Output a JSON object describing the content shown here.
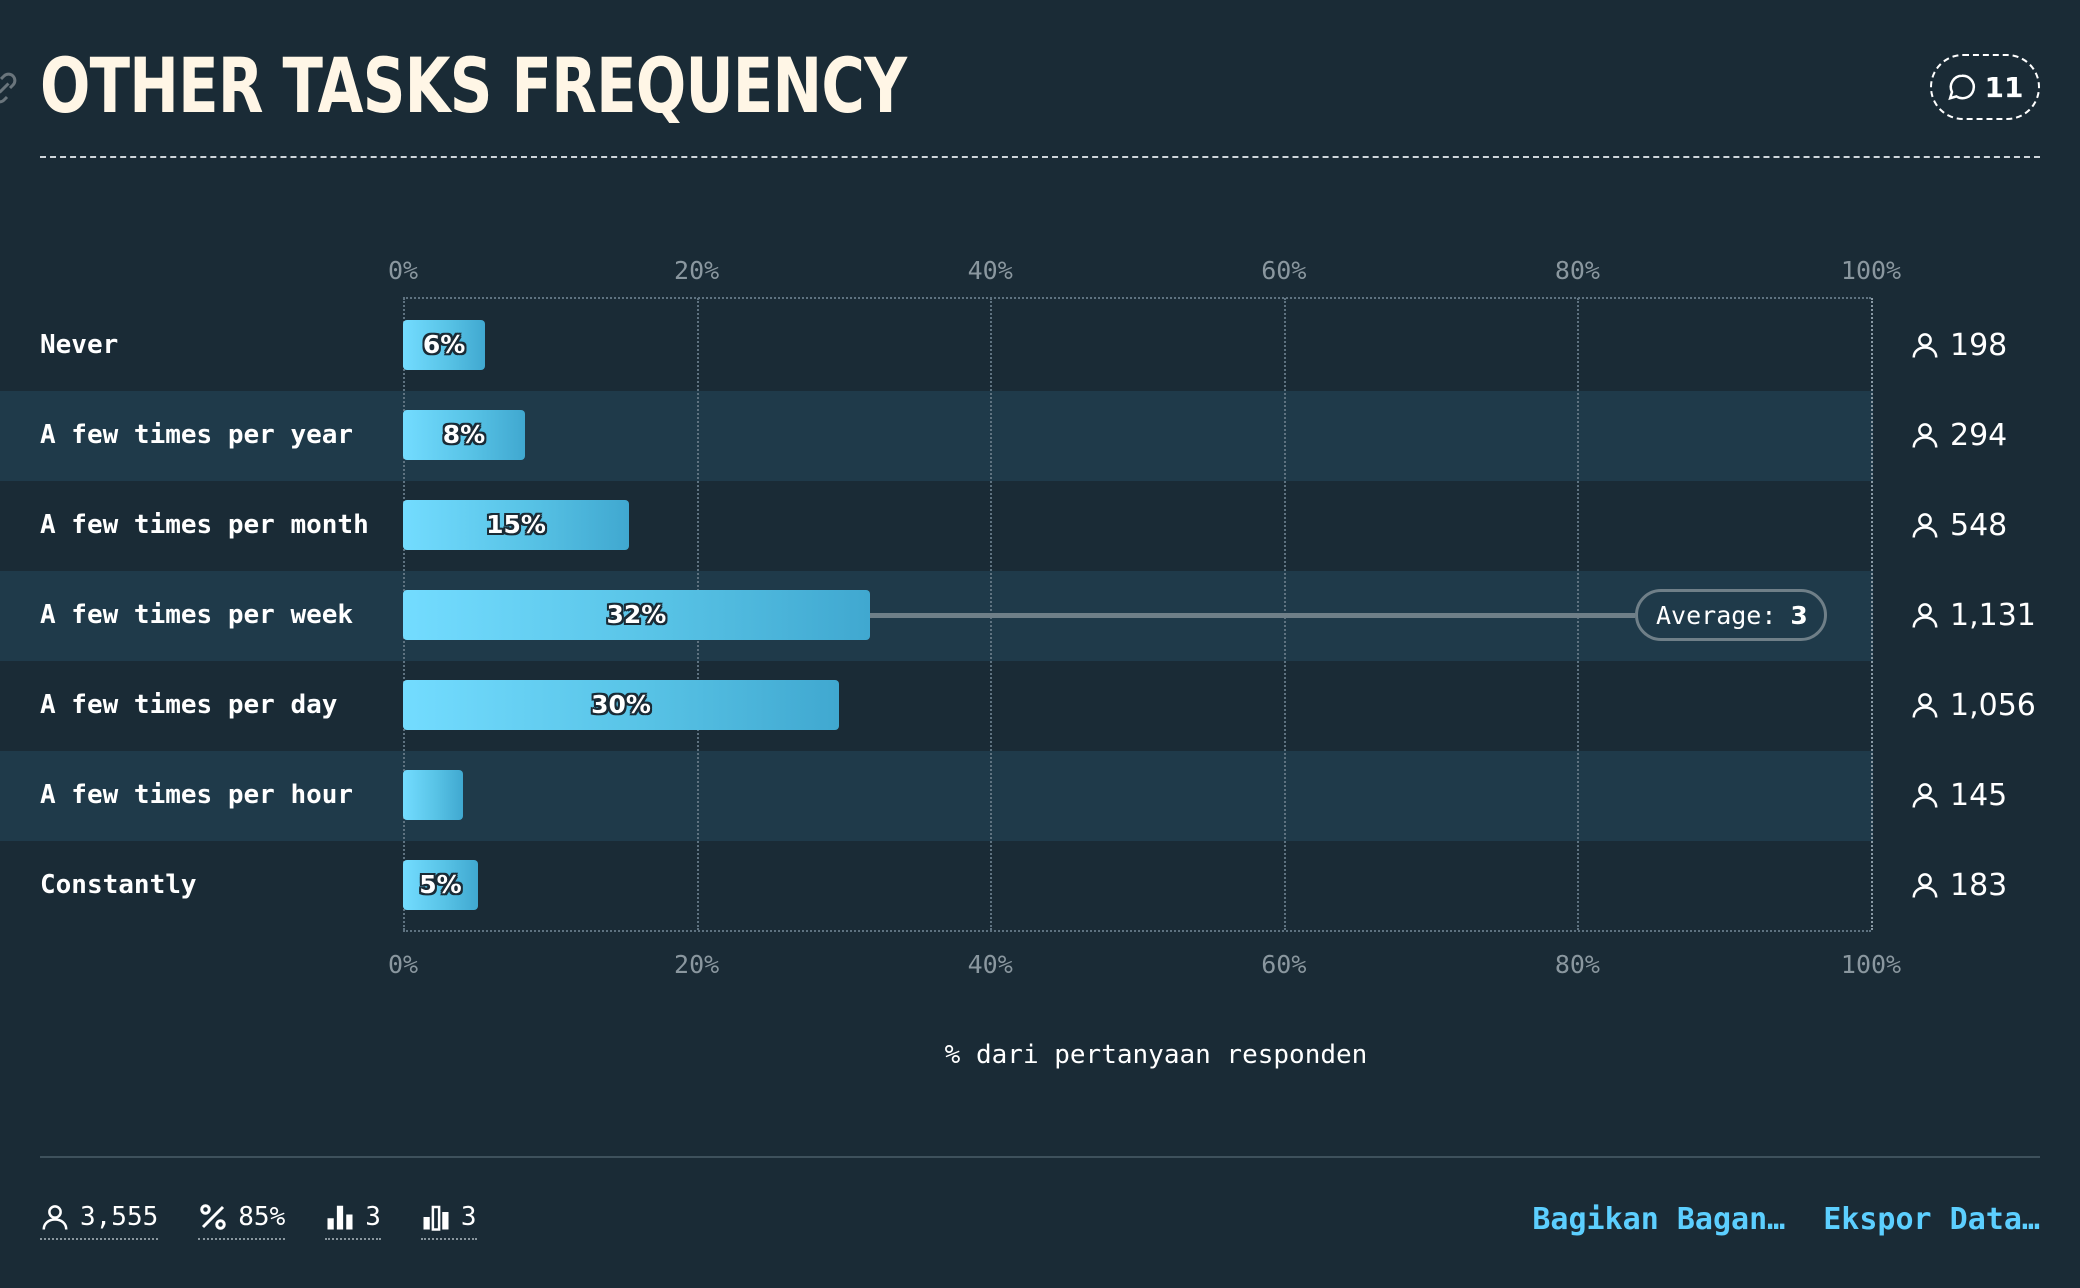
{
  "header": {
    "title": "OTHER TASKS FREQUENCY",
    "comment_count": "11"
  },
  "chart_data": {
    "type": "bar",
    "orientation": "horizontal",
    "title": "OTHER TASKS FREQUENCY",
    "xlabel": "% dari pertanyaan responden",
    "xlim": [
      0,
      100
    ],
    "x_ticks": [
      "0%",
      "20%",
      "40%",
      "60%",
      "80%",
      "100%"
    ],
    "grid": true,
    "categories": [
      "Never",
      "A few times per year",
      "A few times per month",
      "A few times per week",
      "A few times per day",
      "A few times per hour",
      "Constantly"
    ],
    "values": [
      5.6,
      8.3,
      15.4,
      31.8,
      29.7,
      4.1,
      5.1
    ],
    "value_labels": [
      "6%",
      "8%",
      "15%",
      "32%",
      "30%",
      "",
      "5%"
    ],
    "counts": [
      "198",
      "294",
      "548",
      "1,131",
      "1,056",
      "145",
      "183"
    ],
    "average": {
      "label": "Average:",
      "value": "3",
      "category_index": 3
    },
    "colors": {
      "bar_start": "#73dcff",
      "bar_end": "#40a8d0",
      "band": "#1f3a4a",
      "background": "#1a2b36"
    }
  },
  "footer": {
    "stats": [
      {
        "icon": "user-icon",
        "value": "3,555"
      },
      {
        "icon": "percent-icon",
        "value": "85%"
      },
      {
        "icon": "bar-chart-icon",
        "value": "3"
      },
      {
        "icon": "bar-chart-alt-icon",
        "value": "3"
      }
    ],
    "share_label": "Bagikan Bagan…",
    "export_label": "Ekspor Data…"
  }
}
